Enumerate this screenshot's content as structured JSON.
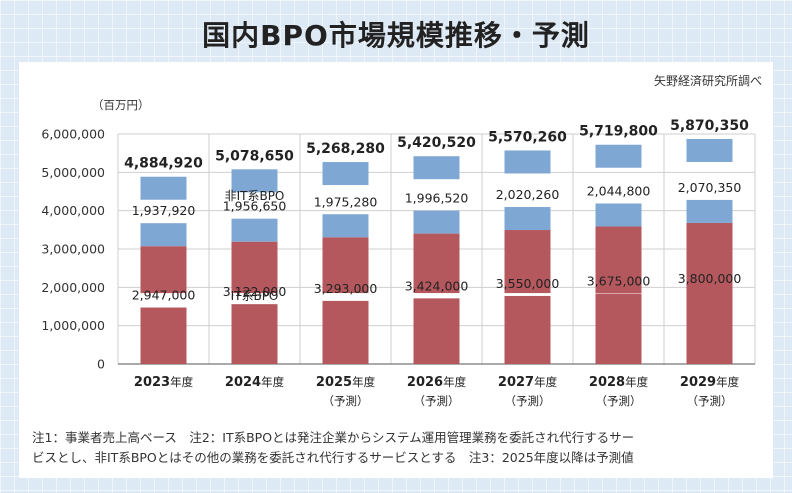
{
  "page": {
    "title": "国内BPO市場規模推移・予測",
    "source": "矢野経済研究所調べ",
    "notes": [
      "注1：事業者売上高ベース　注2：IT系BPOとは発注企業からシステム運用管理業務を委託され代行するサー",
      "ビスとし、非IT系BPOとはその他の業務を委託され代行するサービスとする　注3：2025年度以降は予測値"
    ]
  },
  "chart_data": {
    "type": "bar",
    "stacked": true,
    "title": "国内BPO市場規模推移・予測",
    "ylabel": "（百万円）",
    "ylim": [
      0,
      6000000
    ],
    "yticks": [
      "6,000,000",
      "5,000,000",
      "4,000,000",
      "3,000,000",
      "2,000,000",
      "1,000,000",
      "0"
    ],
    "categories": [
      {
        "year": "2023",
        "suffix": "年度",
        "sub": ""
      },
      {
        "year": "2024",
        "suffix": "年度",
        "sub": ""
      },
      {
        "year": "2025",
        "suffix": "年度",
        "sub": "（予測）"
      },
      {
        "year": "2026",
        "suffix": "年度",
        "sub": "（予測）"
      },
      {
        "year": "2027",
        "suffix": "年度",
        "sub": "（予測）"
      },
      {
        "year": "2028",
        "suffix": "年度",
        "sub": "（予測）"
      },
      {
        "year": "2029",
        "suffix": "年度",
        "sub": "（予測）"
      }
    ],
    "series": [
      {
        "name": "IT系BPO",
        "color": "#b5585e",
        "values": [
          2947000,
          3122000,
          3293000,
          3424000,
          3550000,
          3675000,
          3800000
        ],
        "labels": [
          "2,947,000",
          "3,122,000",
          "3,293,000",
          "3,424,000",
          "3,550,000",
          "3,675,000",
          "3,800,000"
        ]
      },
      {
        "name": "非IT系BPO",
        "color": "#7fa7d4",
        "values": [
          1937920,
          1956650,
          1975280,
          1996520,
          2020260,
          2044800,
          2070350
        ],
        "labels": [
          "1,937,920",
          "1,956,650",
          "1,975,280",
          "1,996,520",
          "2,020,260",
          "2,044,800",
          "2,070,350"
        ]
      }
    ],
    "totals": [
      4884920,
      5078650,
      5268280,
      5420520,
      5570260,
      5719800,
      5870350
    ],
    "total_labels": [
      "4,884,920",
      "5,078,650",
      "5,268,280",
      "5,420,520",
      "5,570,260",
      "5,719,800",
      "5,870,350"
    ],
    "series_labels": {
      "it": "IT系BPO",
      "nonit": "非IT系BPO"
    },
    "grid": true
  }
}
